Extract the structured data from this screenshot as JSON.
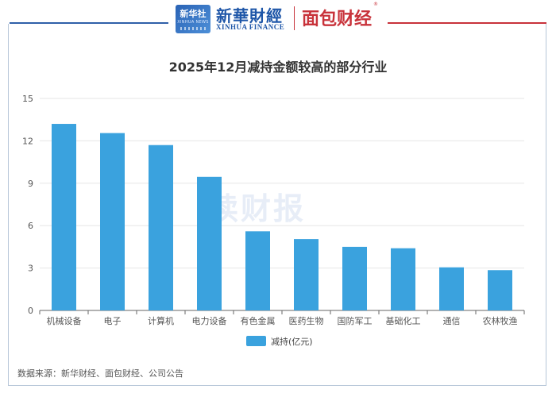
{
  "header": {
    "xinhua_icon_cn": "新华社",
    "xinhua_icon_en": "XINHUA NEWS",
    "xinhua_finance_cn": "新華財經",
    "xinhua_finance_en": "XINHUA FINANCE",
    "mianbao_caijing": "面包财经",
    "registered_mark": "®"
  },
  "watermark": "读财报",
  "source": "数据来源：新华财经、面包财经、公司公告",
  "colors": {
    "bar": "#3aa2de",
    "grid": "#e6e6e6",
    "axis": "#666666"
  },
  "chart_data": {
    "type": "bar",
    "title": "2025年12月减持金额较高的部分行业",
    "xlabel": "",
    "ylabel": "",
    "categories": [
      "机械设备",
      "电子",
      "计算机",
      "电力设备",
      "有色金属",
      "医药生物",
      "国防军工",
      "基础化工",
      "通信",
      "农林牧渔"
    ],
    "series": [
      {
        "name": "减持(亿元)",
        "values": [
          13.2,
          12.55,
          11.7,
          9.45,
          5.6,
          5.05,
          4.5,
          4.4,
          3.05,
          2.85
        ]
      }
    ],
    "ylim": [
      0,
      15
    ],
    "yticks": [
      0,
      3,
      6,
      9,
      12,
      15
    ],
    "grid": true,
    "legend": "bottom-center"
  }
}
